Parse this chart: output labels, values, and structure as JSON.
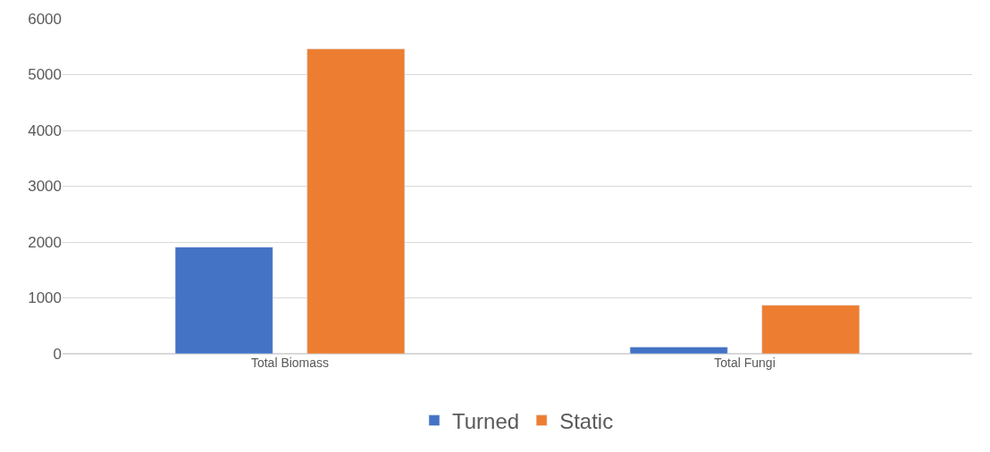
{
  "chart_data": {
    "type": "bar",
    "categories": [
      "Total Biomass",
      "Total Fungi"
    ],
    "series": [
      {
        "name": "Turned",
        "color": "#4472c4",
        "values": [
          1910,
          120
        ]
      },
      {
        "name": "Static",
        "color": "#ed7d31",
        "values": [
          5460,
          870
        ]
      }
    ],
    "ylim": [
      0,
      6000
    ],
    "yticks": [
      0,
      1000,
      2000,
      3000,
      4000,
      5000,
      6000
    ],
    "grid": "y",
    "legend": "bottom"
  }
}
